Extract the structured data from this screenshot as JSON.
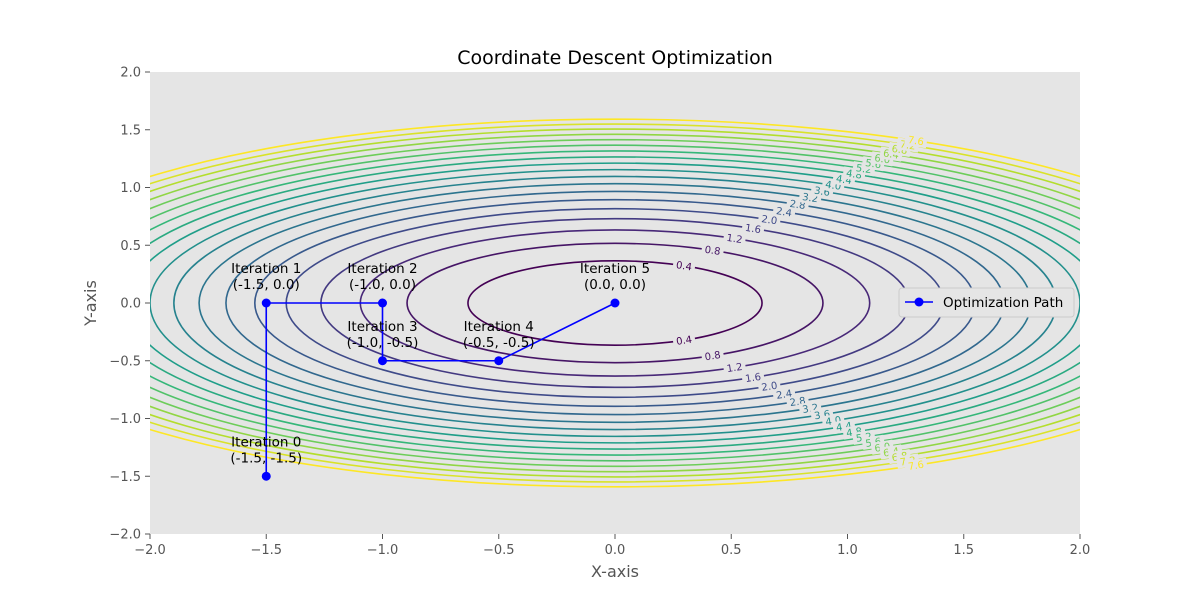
{
  "chart_data": {
    "type": "line",
    "title": "Coordinate Descent Optimization",
    "xlabel": "X-axis",
    "ylabel": "Y-axis",
    "xlim": [
      -2.0,
      2.0
    ],
    "ylim": [
      -2.0,
      2.0
    ],
    "x_ticks": [
      "−2.0",
      "−1.5",
      "−1.0",
      "−0.5",
      "0.0",
      "0.5",
      "1.0",
      "1.5",
      "2.0"
    ],
    "y_ticks": [
      "−2.0",
      "−1.5",
      "−1.0",
      "−0.5",
      "0.0",
      "0.5",
      "1.0",
      "1.5",
      "2.0"
    ],
    "grid": false,
    "background": "#e5e5e5",
    "contour": {
      "function": "x^2 + 3y^2",
      "levels": [
        0.4,
        0.8,
        1.2,
        1.6,
        2.0,
        2.4,
        2.8,
        3.2,
        3.6,
        4.0,
        4.4,
        4.8,
        5.2,
        5.6,
        6.0,
        6.4,
        6.8,
        7.2,
        7.6
      ],
      "labels": [
        "0.4",
        "0.8",
        "1.2",
        "1.6",
        "2.0",
        "2.4",
        "2.8",
        "3.2",
        "3.6",
        "4.0",
        "4.4",
        "4.8",
        "5.2",
        "5.6",
        "6.0",
        "6.4",
        "6.8",
        "7.2",
        "7.6"
      ],
      "colormap": "viridis"
    },
    "series": [
      {
        "name": "Optimization Path",
        "color": "#0000ff",
        "marker": "circle",
        "x": [
          -1.5,
          -1.5,
          -1.0,
          -1.0,
          -0.5,
          0.0
        ],
        "y": [
          -1.5,
          0.0,
          0.0,
          -0.5,
          -0.5,
          0.0
        ]
      }
    ],
    "annotations": [
      {
        "line1": "Iteration 0",
        "line2": "(-1.5, -1.5)"
      },
      {
        "line1": "Iteration 1",
        "line2": "(-1.5, 0.0)"
      },
      {
        "line1": "Iteration 2",
        "line2": "(-1.0, 0.0)"
      },
      {
        "line1": "Iteration 3",
        "line2": "(-1.0, -0.5)"
      },
      {
        "line1": "Iteration 4",
        "line2": "(-0.5, -0.5)"
      },
      {
        "line1": "Iteration 5",
        "line2": "(0.0, 0.0)"
      }
    ],
    "legend": {
      "position": "right",
      "entry": "Optimization Path"
    }
  }
}
